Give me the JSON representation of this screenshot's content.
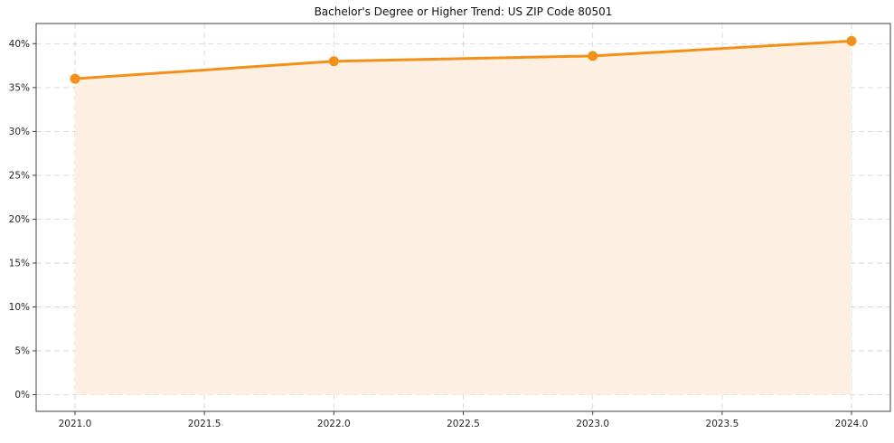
{
  "chart": {
    "title": "Bachelor's Degree or Higher Trend: US ZIP Code 80501"
  },
  "chart_data": {
    "type": "line",
    "title": "Bachelor's Degree or Higher Trend: US ZIP Code 80501",
    "x": [
      2021,
      2022,
      2023,
      2024
    ],
    "values": [
      36.0,
      38.0,
      38.6,
      40.3
    ],
    "xlabel": "",
    "ylabel": "",
    "xlim": [
      2020.85,
      2024.15
    ],
    "ylim": [
      -1.9,
      42.3
    ],
    "x_ticks": [
      2021.0,
      2021.5,
      2022.0,
      2022.5,
      2023.0,
      2023.5,
      2024.0
    ],
    "x_tick_labels": [
      "2021.0",
      "2021.5",
      "2022.0",
      "2022.5",
      "2023.0",
      "2023.5",
      "2024.0"
    ],
    "y_ticks": [
      0,
      5,
      10,
      15,
      20,
      25,
      30,
      35,
      40
    ],
    "y_tick_labels": [
      "0%",
      "5%",
      "10%",
      "15%",
      "20%",
      "25%",
      "30%",
      "35%",
      "40%"
    ],
    "grid": true,
    "grid_style": "dashed",
    "legend": "none",
    "line_color": "#f39019",
    "marker_color": "#f39019",
    "area_fill_color": "#fdf0e2",
    "grid_color": "#d6d6d6",
    "frame_color": "#3f3f3f",
    "area_fill_to": 0
  }
}
